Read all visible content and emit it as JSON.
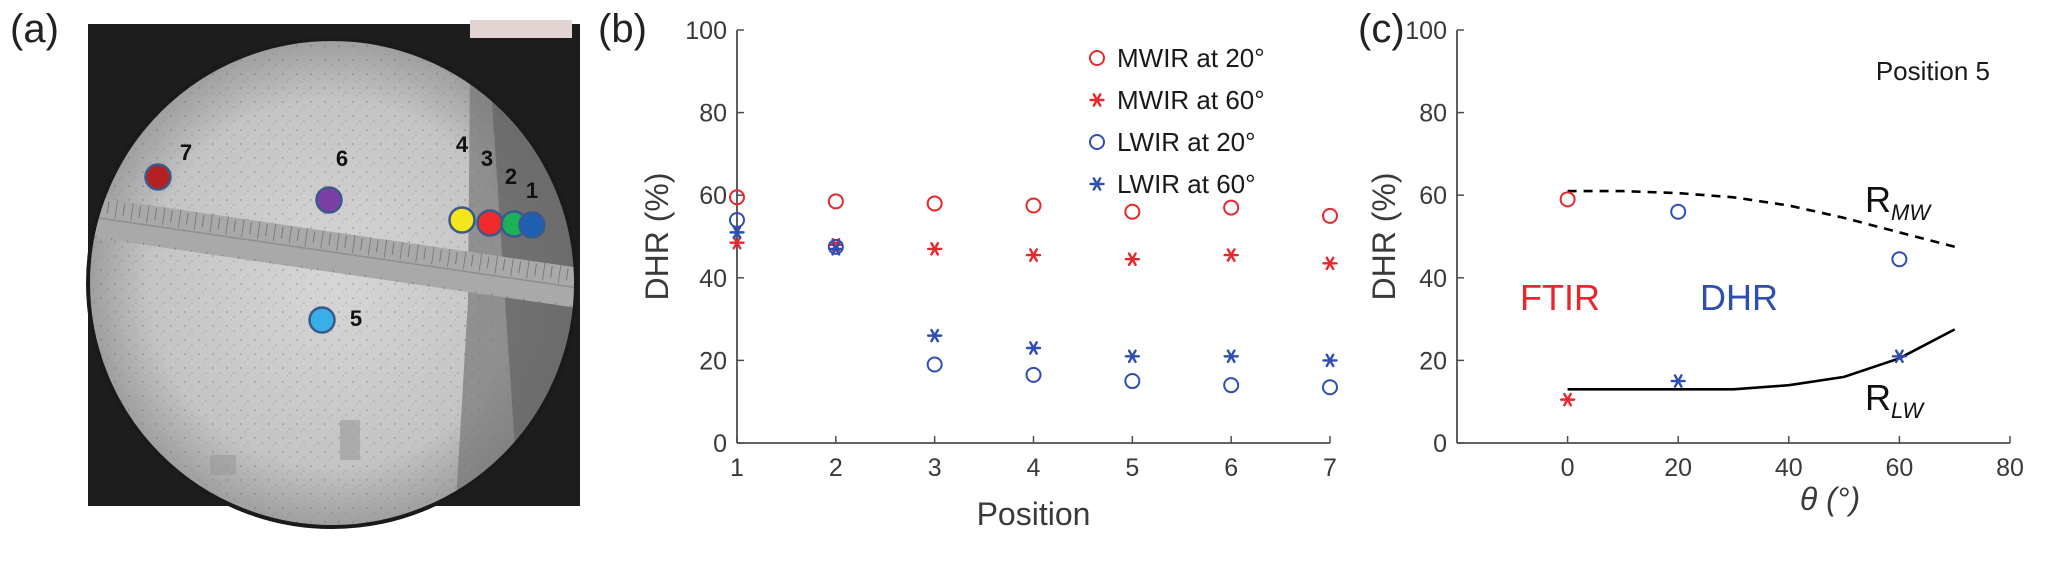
{
  "panels": {
    "a": "(a)",
    "b": "(b)",
    "c": "(c)"
  },
  "photo": {
    "markers": [
      {
        "label": "7",
        "color": "#b22222"
      },
      {
        "label": "6",
        "color": "#7b3fa6"
      },
      {
        "label": "5",
        "color": "#3aaee8"
      },
      {
        "label": "4",
        "color": "#f4e61c"
      },
      {
        "label": "3",
        "color": "#ef2b2b"
      },
      {
        "label": "2",
        "color": "#1fb05a"
      },
      {
        "label": "1",
        "color": "#1f5fb3"
      }
    ]
  },
  "colors": {
    "red": "#e8262c",
    "blue": "#2f4eb3",
    "axis": "#4d4d4d"
  },
  "chart_data": [
    {
      "type": "scatter",
      "panel": "b",
      "xlabel": "Position",
      "ylabel": "DHR (%)",
      "xlim": [
        1,
        7
      ],
      "ylim": [
        0,
        100
      ],
      "xticks": [
        "1",
        "2",
        "3",
        "4",
        "5",
        "6",
        "7"
      ],
      "yticks": [
        "0",
        "20",
        "40",
        "60",
        "80",
        "100"
      ],
      "legend_position": "top-right",
      "series": [
        {
          "name": "MWIR at 20°",
          "marker": "circle",
          "color": "#e8262c",
          "x": [
            1,
            2,
            3,
            4,
            5,
            6,
            7
          ],
          "y": [
            59.5,
            58.5,
            58,
            57.5,
            56,
            57,
            55
          ]
        },
        {
          "name": "MWIR at 60°",
          "marker": "star",
          "color": "#e8262c",
          "x": [
            1,
            2,
            3,
            4,
            5,
            6,
            7
          ],
          "y": [
            48.5,
            48,
            47,
            45.5,
            44.5,
            45.5,
            43.5
          ]
        },
        {
          "name": "LWIR at 20°",
          "marker": "circle",
          "color": "#2f4eb3",
          "x": [
            1,
            2,
            3,
            4,
            5,
            6,
            7
          ],
          "y": [
            54,
            47.5,
            19,
            16.5,
            15,
            14,
            13.5
          ]
        },
        {
          "name": "LWIR at 60°",
          "marker": "star",
          "color": "#2f4eb3",
          "x": [
            1,
            2,
            3,
            4,
            5,
            6,
            7
          ],
          "y": [
            51,
            47,
            26,
            23,
            21,
            21,
            20
          ]
        }
      ]
    },
    {
      "type": "line",
      "panel": "c",
      "title": "Position 5",
      "xlabel": "θ (°)",
      "ylabel": "DHR (%)",
      "xlim": [
        -20,
        80
      ],
      "ylim": [
        0,
        100
      ],
      "xticks": [
        "0",
        "20",
        "40",
        "60",
        "80"
      ],
      "yticks": [
        "0",
        "20",
        "40",
        "60",
        "80",
        "100"
      ],
      "lines": [
        {
          "name": "R",
          "sub": "MW",
          "style": "dashed",
          "color": "#000000",
          "x": [
            0,
            10,
            20,
            30,
            40,
            50,
            60,
            70
          ],
          "y": [
            61,
            61,
            60.5,
            59.5,
            57.5,
            54.5,
            51,
            47.5
          ]
        },
        {
          "name": "R",
          "sub": "LW",
          "style": "solid",
          "color": "#000000",
          "x": [
            0,
            10,
            20,
            30,
            40,
            50,
            60,
            70
          ],
          "y": [
            13,
            13,
            13,
            13,
            14,
            16,
            20.5,
            27.5
          ]
        }
      ],
      "points": [
        {
          "marker": "circle",
          "color": "#e8262c",
          "x": [
            0
          ],
          "y": [
            59
          ]
        },
        {
          "marker": "star",
          "color": "#e8262c",
          "x": [
            0
          ],
          "y": [
            10.5
          ]
        },
        {
          "marker": "circle",
          "color": "#2f4eb3",
          "x": [
            20,
            60
          ],
          "y": [
            56,
            44.5
          ]
        },
        {
          "marker": "star",
          "color": "#2f4eb3",
          "x": [
            20,
            60
          ],
          "y": [
            15,
            21
          ]
        }
      ],
      "annotations": [
        {
          "text": "FTIR",
          "color": "#e8262c"
        },
        {
          "text": "DHR",
          "color": "#2f4eb3"
        }
      ]
    }
  ]
}
